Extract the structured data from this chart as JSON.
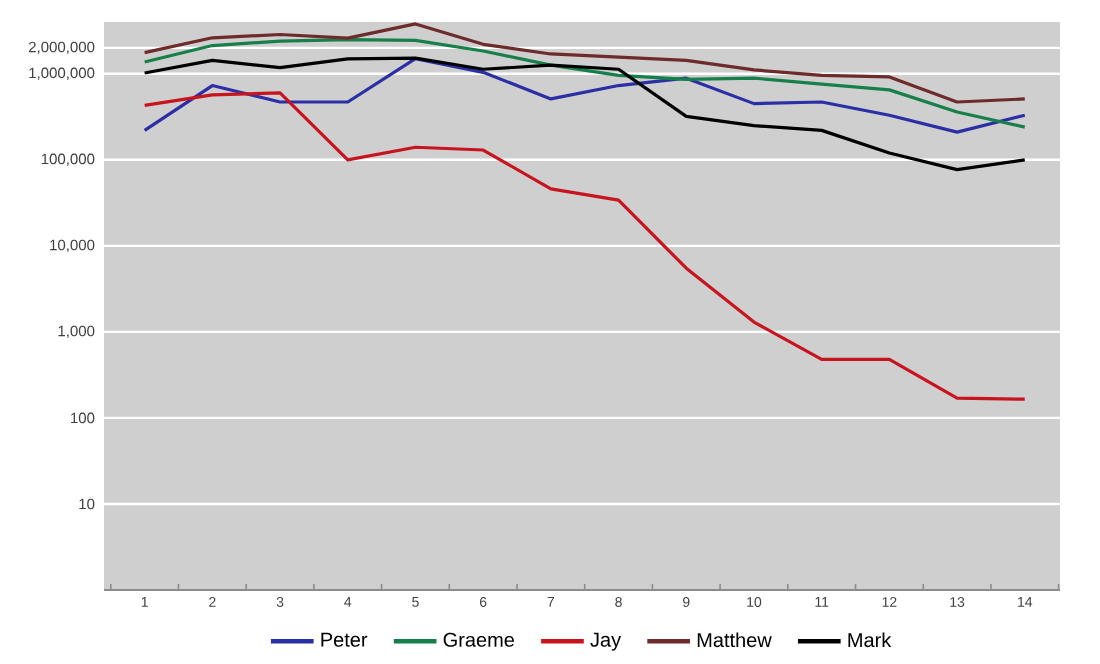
{
  "chart_data": {
    "type": "line",
    "log": "y",
    "grid": "y",
    "legend": "bottom",
    "marker": "none",
    "line_style": "solid",
    "categories": [
      "1",
      "2",
      "3",
      "4",
      "5",
      "6",
      "7",
      "8",
      "9",
      "10",
      "11",
      "12",
      "13",
      "14"
    ],
    "ylim": [
      1,
      4000000
    ],
    "yticks": [
      {
        "value": 10,
        "label": "10"
      },
      {
        "value": 100,
        "label": "100"
      },
      {
        "value": 1000,
        "label": "1,000"
      },
      {
        "value": 10000,
        "label": "10,000"
      },
      {
        "value": 100000,
        "label": "100,000"
      },
      {
        "value": 1000000,
        "label": "1,000,000"
      },
      {
        "value": 2000000,
        "label": "2,000,000"
      }
    ],
    "series": [
      {
        "name": "Peter",
        "color": "#2b2fa6",
        "values": [
          220000,
          730000,
          470000,
          470000,
          1500000,
          1040000,
          510000,
          730000,
          890000,
          450000,
          470000,
          330000,
          210000,
          330000
        ]
      },
      {
        "name": "Graeme",
        "color": "#17804a",
        "values": [
          1370000,
          2130000,
          2400000,
          2500000,
          2450000,
          1840000,
          1260000,
          960000,
          860000,
          890000,
          760000,
          650000,
          360000,
          240000
        ]
      },
      {
        "name": "Jay",
        "color": "#c8141e",
        "values": [
          430000,
          570000,
          600000,
          100000,
          140000,
          130000,
          46000,
          34000,
          5500,
          1300,
          480,
          480,
          170,
          165
        ]
      },
      {
        "name": "Matthew",
        "color": "#6e2b2b",
        "values": [
          1760000,
          2620000,
          2860000,
          2600000,
          3800000,
          2200000,
          1700000,
          1560000,
          1430000,
          1110000,
          960000,
          920000,
          470000,
          510000
        ]
      },
      {
        "name": "Mark",
        "color": "#000000",
        "values": [
          1020000,
          1430000,
          1180000,
          1490000,
          1520000,
          1130000,
          1260000,
          1130000,
          320000,
          250000,
          220000,
          120000,
          77000,
          100000
        ]
      }
    ]
  }
}
